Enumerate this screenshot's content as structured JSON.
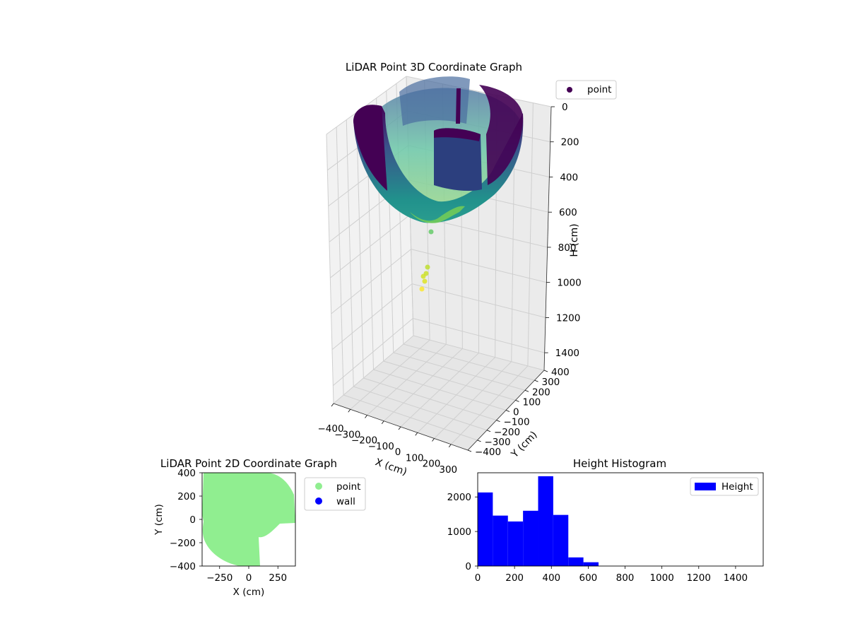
{
  "chart_data": [
    {
      "type": "scatter",
      "title": "LiDAR Point 3D Coordinate Graph",
      "xlabel": "X (cm)",
      "ylabel": "Y (cm)",
      "zlabel": "H (cm)",
      "xlim": [
        -400,
        400
      ],
      "ylim": [
        -400,
        400
      ],
      "zlim": [
        0,
        1500
      ],
      "z_inverted": true,
      "x_ticks": [
        "−400",
        "−300",
        "−200",
        "−100",
        "0",
        "100",
        "200",
        "300"
      ],
      "y_ticks": [
        "−400",
        "−300",
        "−200",
        "−100",
        "0",
        "100",
        "200",
        "300",
        "400"
      ],
      "z_ticks": [
        "0",
        "200",
        "400",
        "600",
        "800",
        "1000",
        "1200",
        "1400"
      ],
      "colormap": "viridis",
      "legend": [
        "point"
      ],
      "legend_position": "upper-right",
      "grid": true,
      "series": [
        {
          "name": "point",
          "color": "#440154",
          "description_points": [
            {
              "x": -330,
              "y": 0,
              "h": 180
            },
            {
              "x": 330,
              "y": 0,
              "h": 180
            },
            {
              "x": 0,
              "y": 0,
              "h": 620
            },
            {
              "x": 0,
              "y": 0,
              "h": 750
            },
            {
              "x": -10,
              "y": 0,
              "h": 980
            },
            {
              "x": -15,
              "y": 0,
              "h": 1050
            }
          ]
        }
      ]
    },
    {
      "type": "scatter",
      "title": "LiDAR Point 2D Coordinate Graph",
      "xlabel": "X (cm)",
      "ylabel": "Y (cm)",
      "xlim": [
        -400,
        400
      ],
      "ylim": [
        -400,
        400
      ],
      "x_ticks": [
        "−250",
        "0",
        "250"
      ],
      "y_ticks": [
        "−400",
        "−200",
        "0",
        "200",
        "400"
      ],
      "legend": [
        "point",
        "wall"
      ],
      "legend_position": "outside-right",
      "series": [
        {
          "name": "point",
          "color": "#90ee90",
          "region": "dense filled area covering x −400..400, y −400..400 except lower-right gap"
        },
        {
          "name": "wall",
          "color": "#0000ff",
          "points": []
        }
      ]
    },
    {
      "type": "bar",
      "title": "Height Histogram",
      "xlabel": "",
      "ylabel": "",
      "xlim": [
        0,
        1550
      ],
      "ylim": [
        0,
        2700
      ],
      "x_ticks": [
        "0",
        "200",
        "400",
        "600",
        "800",
        "1000",
        "1200",
        "1400"
      ],
      "y_ticks": [
        "0",
        "1000",
        "2000"
      ],
      "legend": [
        "Height"
      ],
      "legend_position": "top-right",
      "color": "#0000ff",
      "bin_edges": [
        0,
        82,
        164,
        246,
        328,
        410,
        492,
        574,
        656
      ],
      "counts": [
        2130,
        1460,
        1290,
        1600,
        2600,
        1480,
        250,
        110
      ]
    }
  ]
}
